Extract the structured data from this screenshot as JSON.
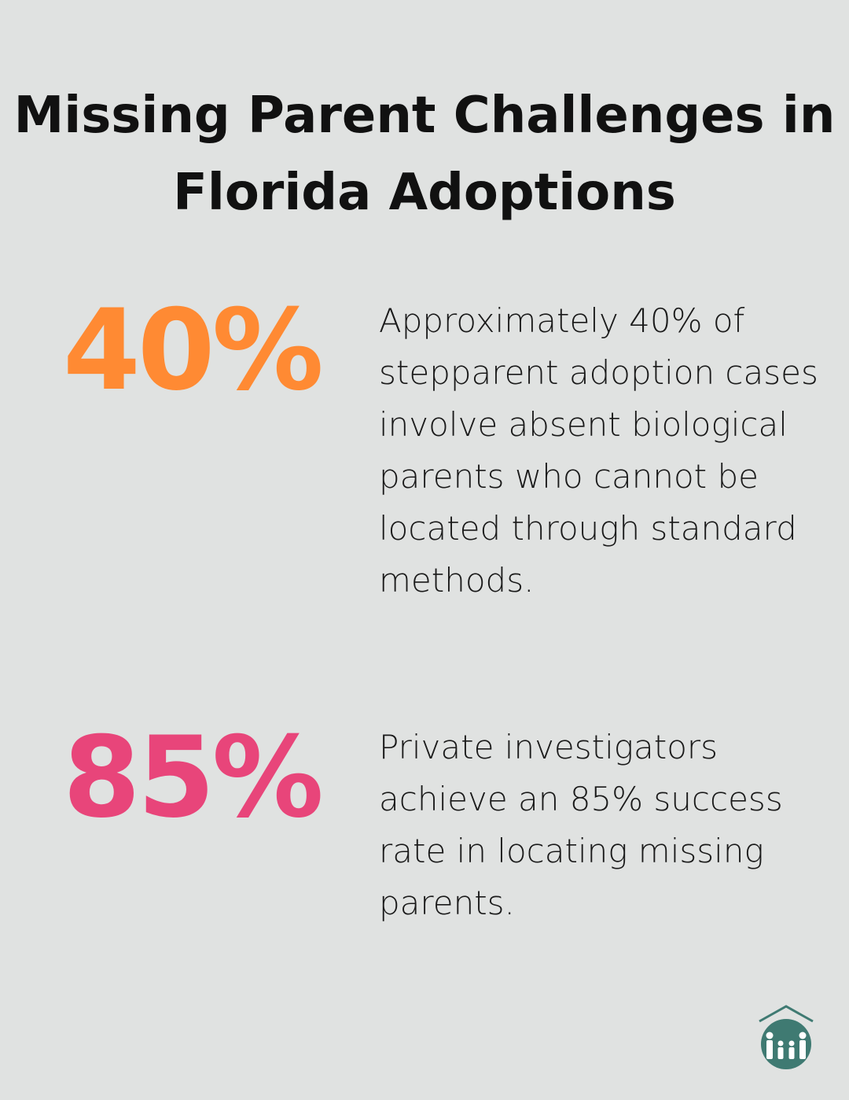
{
  "title": "Missing Parent Challenges in Florida Adoptions",
  "stats": [
    {
      "value": "40%",
      "color": "#ff8a33",
      "text": "Approximately 40% of stepparent adoption cases involve absent biological parents who cannot be located through standard methods."
    },
    {
      "value": "85%",
      "color": "#e8457a",
      "text": "Private investigators achieve an 85% success rate in locating missing parents."
    }
  ],
  "logo": {
    "icon": "family-house-logo",
    "color": "#3f7a72"
  }
}
